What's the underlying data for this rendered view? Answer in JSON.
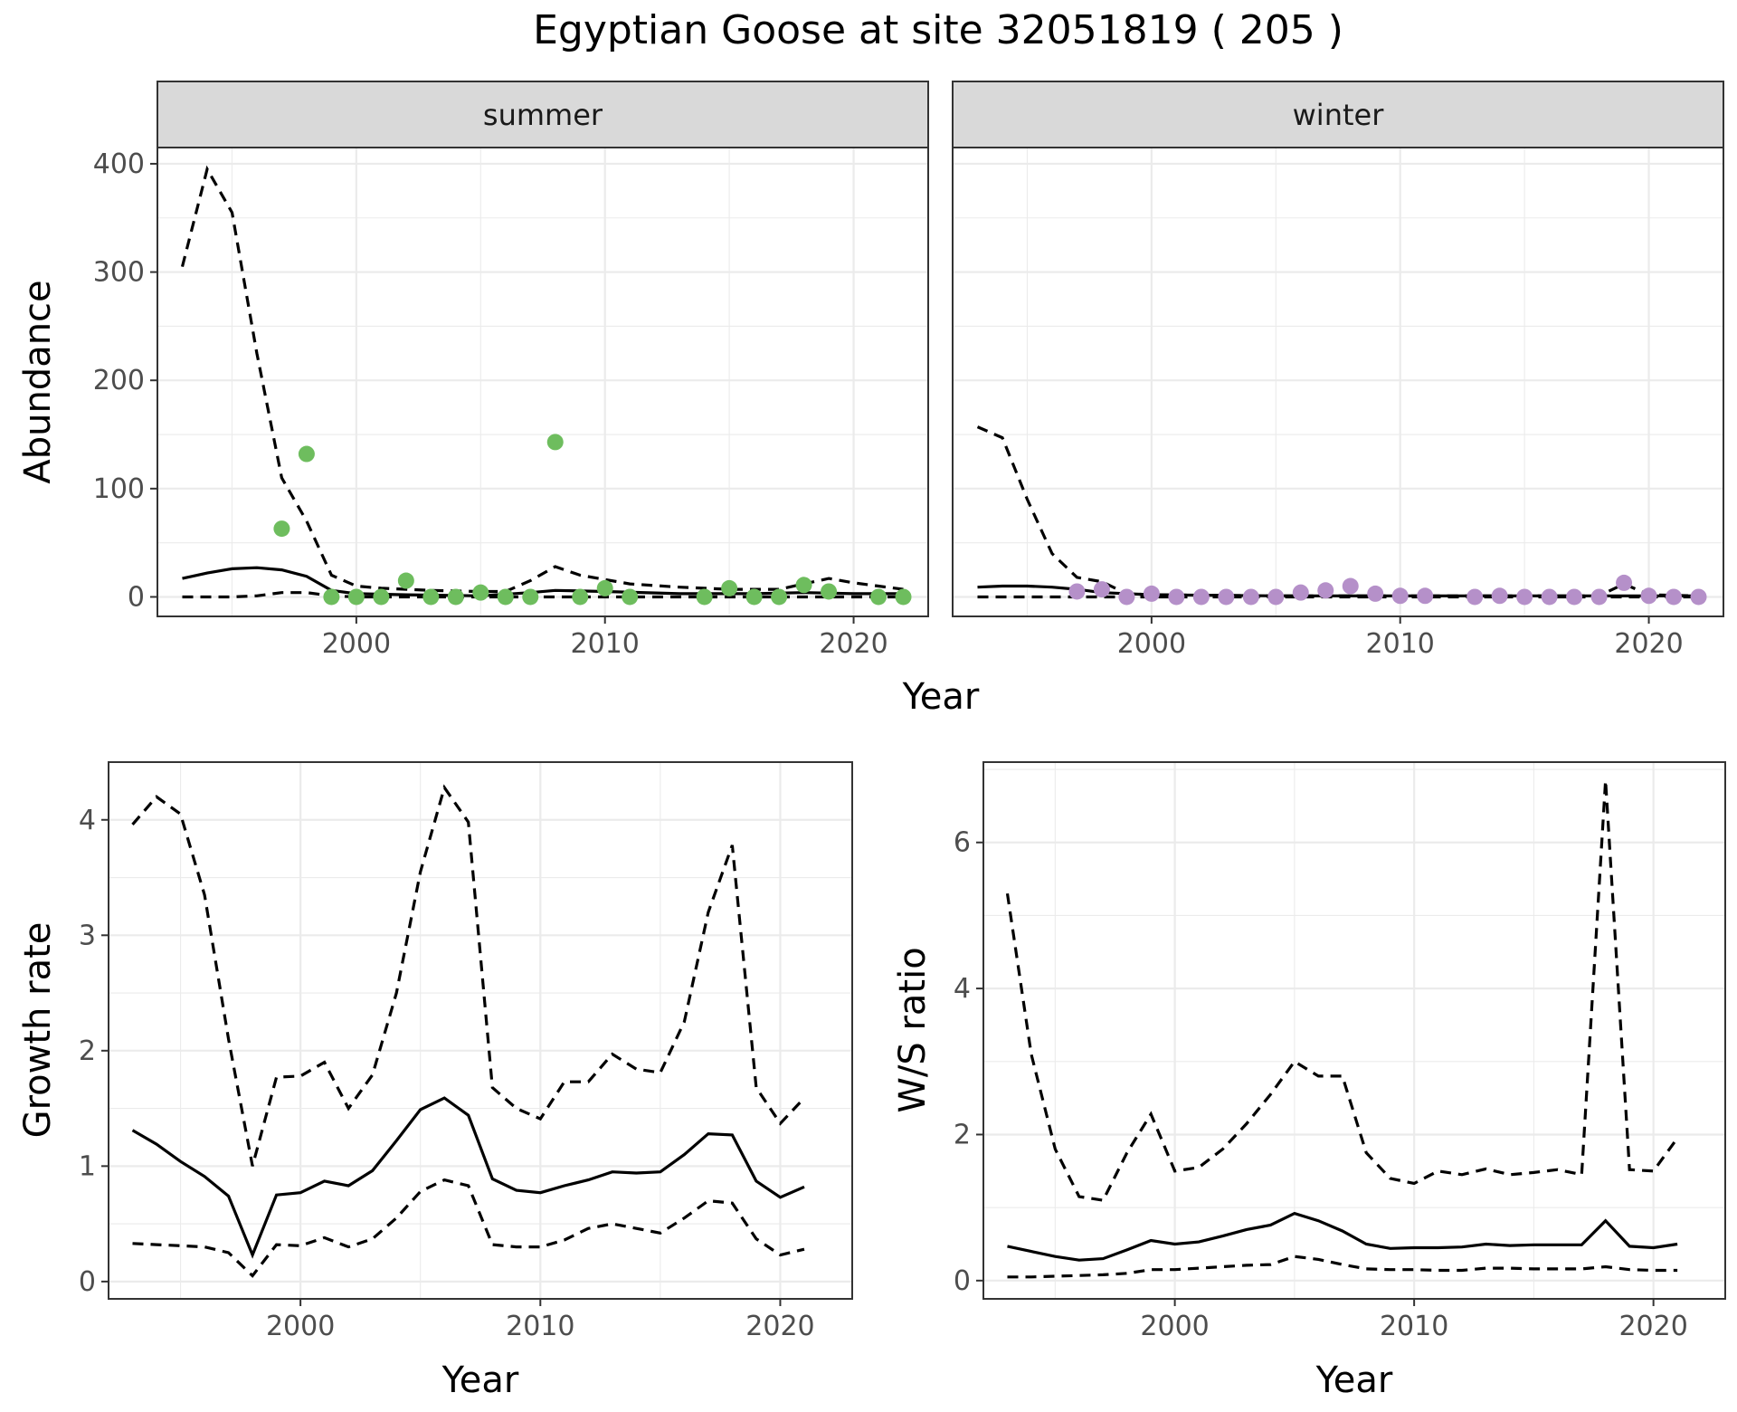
{
  "title": "Egyptian Goose at site 32051819 ( 205 )",
  "chart_data": [
    {
      "id": "abundance",
      "type": "line",
      "facets": [
        "summer",
        "winter"
      ],
      "xlabel": "Year",
      "ylabel": "Abundance",
      "xlim": [
        1992,
        2023
      ],
      "ylim": [
        -18,
        415
      ],
      "x_ticks": [
        2000,
        2010,
        2020
      ],
      "y_ticks": [
        0,
        100,
        200,
        300,
        400
      ],
      "point_colors": {
        "summer": "#6ebd5e",
        "winter": "#b590c9"
      },
      "line_styles": {
        "mean": "solid",
        "lower": "dashed",
        "upper": "dashed"
      },
      "panels": [
        {
          "facet": "summer",
          "mean": {
            "x": [
              1993,
              1994,
              1995,
              1996,
              1997,
              1998,
              1999,
              2000,
              2002,
              2005,
              2007,
              2008,
              2010,
              2013,
              2016,
              2018,
              2020,
              2022
            ],
            "y": [
              17,
              22,
              26,
              27,
              25,
              19,
              6,
              3,
              2,
              1,
              4,
              6,
              5,
              3,
              3,
              4,
              3,
              3
            ]
          },
          "lower": {
            "x": [
              1993,
              1994,
              1995,
              1996,
              1997,
              1998,
              1999,
              2000,
              2005,
              2010,
              2015,
              2020,
              2022
            ],
            "y": [
              0,
              0,
              0,
              1,
              4,
              4,
              1,
              0,
              0,
              0,
              0,
              0,
              0
            ]
          },
          "upper": {
            "x": [
              1993,
              1994,
              1995,
              1996,
              1997,
              1998,
              1999,
              2000,
              2001,
              2003,
              2005,
              2006,
              2007,
              2008,
              2009,
              2010,
              2011,
              2013,
              2015,
              2017,
              2019,
              2020,
              2021,
              2022
            ],
            "y": [
              305,
              395,
              355,
              225,
              110,
              70,
              20,
              10,
              8,
              6,
              5,
              5,
              15,
              28,
              20,
              16,
              12,
              9,
              7,
              7,
              17,
              13,
              10,
              7
            ]
          },
          "points": {
            "x": [
              1997,
              1998,
              1999,
              2000,
              2001,
              2002,
              2003,
              2004,
              2005,
              2006,
              2007,
              2008,
              2009,
              2010,
              2011,
              2014,
              2015,
              2016,
              2017,
              2018,
              2019,
              2021,
              2022
            ],
            "y": [
              63,
              132,
              0,
              0,
              0,
              15,
              0,
              0,
              4,
              0,
              0,
              143,
              0,
              8,
              0,
              0,
              8,
              0,
              0,
              11,
              5,
              0,
              0
            ]
          }
        },
        {
          "facet": "winter",
          "mean": {
            "x": [
              1993,
              1994,
              1995,
              1996,
              1997,
              1998,
              2000,
              2005,
              2010,
              2015,
              2020,
              2022
            ],
            "y": [
              9,
              10,
              10,
              9,
              7,
              4,
              2,
              1,
              1,
              1,
              1,
              1
            ]
          },
          "lower": {
            "x": [
              1993,
              1997,
              2000,
              2010,
              2022
            ],
            "y": [
              0,
              0,
              0,
              0,
              0
            ]
          },
          "upper": {
            "x": [
              1993,
              1994,
              1995,
              1996,
              1997,
              1998,
              1999,
              2000,
              2005,
              2010,
              2015,
              2018,
              2019,
              2020,
              2022
            ],
            "y": [
              157,
              147,
              90,
              40,
              18,
              14,
              3,
              2,
              1,
              1,
              1,
              1,
              12,
              2,
              1
            ]
          },
          "points": {
            "x": [
              1997,
              1998,
              1999,
              2000,
              2001,
              2002,
              2003,
              2004,
              2005,
              2006,
              2007,
              2008,
              2009,
              2010,
              2011,
              2013,
              2014,
              2015,
              2016,
              2017,
              2018,
              2019,
              2020,
              2021,
              2022
            ],
            "y": [
              5,
              7,
              0,
              3,
              0,
              0,
              0,
              0,
              0,
              4,
              6,
              10,
              3,
              1,
              1,
              0,
              1,
              0,
              0,
              0,
              0,
              13,
              1,
              0,
              0
            ]
          }
        }
      ]
    },
    {
      "id": "growth",
      "type": "line",
      "xlabel": "Year",
      "ylabel": "Growth rate",
      "xlim": [
        1992,
        2023
      ],
      "ylim": [
        -0.15,
        4.5
      ],
      "x_ticks": [
        2000,
        2010,
        2020
      ],
      "y_ticks": [
        0,
        1,
        2,
        3,
        4
      ],
      "x": [
        1993,
        1994,
        1995,
        1996,
        1997,
        1998,
        1999,
        2000,
        2001,
        2002,
        2003,
        2004,
        2005,
        2006,
        2007,
        2008,
        2009,
        2010,
        2011,
        2012,
        2013,
        2014,
        2015,
        2016,
        2017,
        2018,
        2019,
        2020,
        2021
      ],
      "mean": [
        1.31,
        1.19,
        1.04,
        0.91,
        0.74,
        0.23,
        0.75,
        0.77,
        0.87,
        0.83,
        0.96,
        1.22,
        1.49,
        1.59,
        1.44,
        0.89,
        0.79,
        0.77,
        0.83,
        0.88,
        0.95,
        0.94,
        0.95,
        1.1,
        1.28,
        1.27,
        0.87,
        0.73,
        0.82
      ],
      "lower": [
        0.33,
        0.32,
        0.31,
        0.3,
        0.25,
        0.05,
        0.32,
        0.31,
        0.38,
        0.3,
        0.37,
        0.55,
        0.78,
        0.88,
        0.83,
        0.32,
        0.3,
        0.3,
        0.36,
        0.46,
        0.5,
        0.46,
        0.42,
        0.55,
        0.7,
        0.68,
        0.37,
        0.23,
        0.28
      ],
      "upper": [
        3.96,
        4.2,
        4.05,
        3.35,
        2.1,
        1,
        1.77,
        1.78,
        1.9,
        1.5,
        1.79,
        2.5,
        3.55,
        4.28,
        3.98,
        1.68,
        1.5,
        1.41,
        1.73,
        1.73,
        1.97,
        1.84,
        1.81,
        2.25,
        3.2,
        3.78,
        1.68,
        1.37,
        1.59
      ]
    },
    {
      "id": "ws_ratio",
      "type": "line",
      "xlabel": "Year",
      "ylabel": "W/S ratio",
      "xlim": [
        1992,
        2023
      ],
      "ylim": [
        -0.25,
        7.1
      ],
      "x_ticks": [
        2000,
        2010,
        2020
      ],
      "y_ticks": [
        0,
        2,
        4,
        6
      ],
      "x": [
        1993,
        1994,
        1995,
        1996,
        1997,
        1998,
        1999,
        2000,
        2001,
        2002,
        2003,
        2004,
        2005,
        2006,
        2007,
        2008,
        2009,
        2010,
        2011,
        2012,
        2013,
        2014,
        2015,
        2016,
        2017,
        2018,
        2019,
        2020,
        2021
      ],
      "mean": [
        0.47,
        0.4,
        0.33,
        0.28,
        0.3,
        0.42,
        0.55,
        0.5,
        0.53,
        0.61,
        0.7,
        0.76,
        0.92,
        0.82,
        0.68,
        0.5,
        0.44,
        0.45,
        0.45,
        0.46,
        0.5,
        0.48,
        0.49,
        0.49,
        0.49,
        0.82,
        0.47,
        0.45,
        0.5
      ],
      "lower": [
        0.05,
        0.05,
        0.06,
        0.07,
        0.08,
        0.1,
        0.15,
        0.15,
        0.17,
        0.19,
        0.21,
        0.22,
        0.33,
        0.29,
        0.22,
        0.16,
        0.15,
        0.15,
        0.14,
        0.14,
        0.17,
        0.17,
        0.16,
        0.16,
        0.16,
        0.19,
        0.15,
        0.14,
        0.14
      ],
      "upper": [
        5.3,
        3.1,
        1.8,
        1.15,
        1.1,
        1.75,
        2.28,
        1.5,
        1.55,
        1.8,
        2.15,
        2.55,
        3,
        2.8,
        2.8,
        1.75,
        1.4,
        1.33,
        1.5,
        1.45,
        1.53,
        1.45,
        1.48,
        1.52,
        1.45,
        6.85,
        1.52,
        1.5,
        1.95
      ]
    }
  ]
}
